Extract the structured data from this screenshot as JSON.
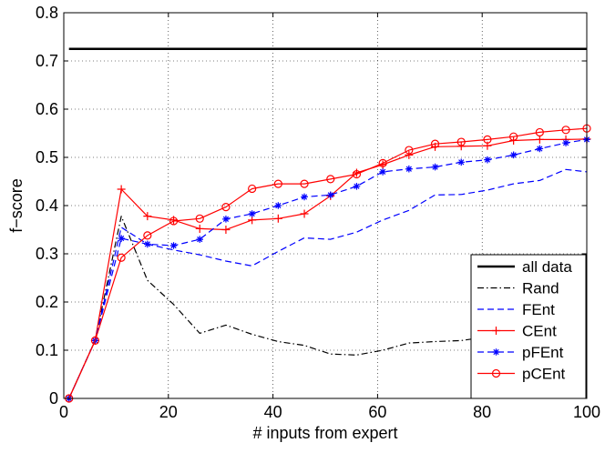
{
  "chart_data": {
    "type": "line",
    "title": "",
    "xlabel": "# inputs from expert",
    "ylabel": "f−score",
    "xlim": [
      0,
      100
    ],
    "ylim": [
      0,
      0.8
    ],
    "x_ticks": [
      "0",
      "20",
      "40",
      "60",
      "80",
      "100"
    ],
    "y_ticks": [
      "0",
      "0.1",
      "0.2",
      "0.3",
      "0.4",
      "0.5",
      "0.6",
      "0.7",
      "0.8"
    ],
    "grid": true,
    "legend_position": "bottom-right",
    "series": [
      {
        "name": "all data",
        "color": "#000000",
        "style": "solid",
        "marker": "none",
        "x": [
          1,
          100
        ],
        "y": [
          0.725,
          0.725
        ]
      },
      {
        "name": "Rand",
        "color": "#000000",
        "style": "dashdot",
        "marker": "none",
        "x": [
          1,
          6,
          11,
          16,
          21,
          26,
          31,
          36,
          41,
          46,
          51,
          56,
          61,
          66,
          71,
          76,
          81,
          86,
          91,
          96,
          100
        ],
        "y": [
          0,
          0.12,
          0.378,
          0.245,
          0.195,
          0.135,
          0.152,
          0.133,
          0.118,
          0.11,
          0.092,
          0.09,
          0.1,
          0.115,
          0.118,
          0.12,
          0.128,
          0.13,
          0.135,
          0.14,
          0.145
        ]
      },
      {
        "name": "FEnt",
        "color": "#0000ff",
        "style": "dashed",
        "marker": "none",
        "x": [
          1,
          6,
          11,
          16,
          21,
          26,
          31,
          36,
          41,
          46,
          51,
          56,
          61,
          66,
          71,
          76,
          81,
          86,
          91,
          96,
          100
        ],
        "y": [
          0,
          0.12,
          0.355,
          0.32,
          0.308,
          0.298,
          0.285,
          0.275,
          0.305,
          0.333,
          0.33,
          0.345,
          0.37,
          0.39,
          0.422,
          0.423,
          0.432,
          0.445,
          0.452,
          0.475,
          0.47
        ]
      },
      {
        "name": "CEnt",
        "color": "#ff0000",
        "style": "solid",
        "marker": "plus",
        "x": [
          1,
          6,
          11,
          16,
          21,
          26,
          31,
          36,
          41,
          46,
          51,
          56,
          61,
          66,
          71,
          76,
          81,
          86,
          91,
          96,
          100
        ],
        "y": [
          0,
          0.12,
          0.434,
          0.378,
          0.37,
          0.352,
          0.35,
          0.37,
          0.373,
          0.383,
          0.42,
          0.468,
          0.485,
          0.505,
          0.522,
          0.523,
          0.524,
          0.535,
          0.537,
          0.537,
          0.538
        ]
      },
      {
        "name": "pFEnt",
        "color": "#0000ff",
        "style": "dashed",
        "marker": "star",
        "x": [
          1,
          6,
          11,
          16,
          21,
          26,
          31,
          36,
          41,
          46,
          51,
          56,
          61,
          66,
          71,
          76,
          81,
          86,
          91,
          96,
          100
        ],
        "y": [
          0,
          0.12,
          0.332,
          0.32,
          0.317,
          0.33,
          0.372,
          0.383,
          0.4,
          0.418,
          0.422,
          0.44,
          0.47,
          0.476,
          0.48,
          0.49,
          0.495,
          0.505,
          0.518,
          0.53,
          0.537
        ]
      },
      {
        "name": "pCEnt",
        "color": "#ff0000",
        "style": "solid",
        "marker": "circle",
        "x": [
          1,
          6,
          11,
          16,
          21,
          26,
          31,
          36,
          41,
          46,
          51,
          56,
          61,
          66,
          71,
          76,
          81,
          86,
          91,
          96,
          100
        ],
        "y": [
          0,
          0.12,
          0.292,
          0.338,
          0.368,
          0.373,
          0.397,
          0.435,
          0.445,
          0.445,
          0.455,
          0.465,
          0.488,
          0.515,
          0.528,
          0.532,
          0.537,
          0.543,
          0.552,
          0.557,
          0.56
        ]
      }
    ]
  }
}
